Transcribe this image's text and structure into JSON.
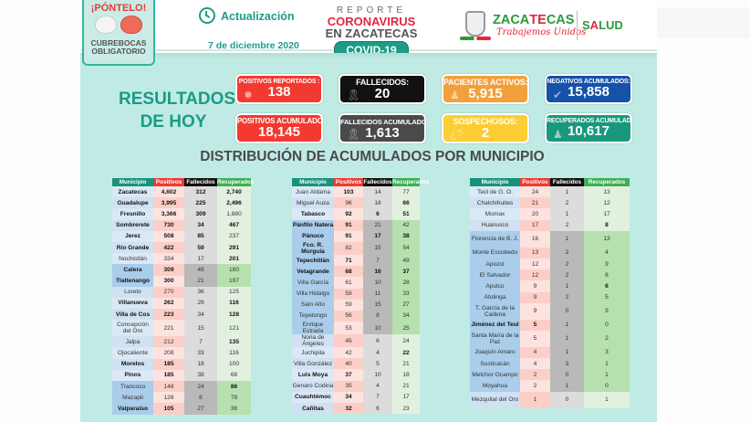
{
  "background": {
    "left_fragments": [
      "",
      "",
      "",
      "",
      "",
      "",
      "",
      ""
    ],
    "right_banner": ""
  },
  "header": {
    "ponte": {
      "title": "¡PÓNTELO!",
      "subtitle_line1": "CUBREBOCAS",
      "subtitle_line2": "OBLIGATORIO"
    },
    "update": {
      "icon": "clock-icon",
      "label": "Actualización",
      "date": "7 de diciembre 2020"
    },
    "report": {
      "line1": "REPORTE",
      "line2": "CORONAVIRUS",
      "line3": "EN ZACATECAS",
      "badge": "COVID-19"
    },
    "government": {
      "name_green": "ZACA",
      "name_red": "TE",
      "name_green2": "CAS",
      "slogan": "Trabajemos Unidos",
      "health_green": "S",
      "health_red": "A",
      "health_green2": "LUD"
    }
  },
  "results": {
    "title_line1": "RESULTADOS",
    "title_line2": "DE HOY",
    "cards": [
      {
        "label": "POSITIVOS REPORTADOS :",
        "value": "138",
        "color": "#f33a30",
        "icon": "virus-icon"
      },
      {
        "label": "FALLECIDOS:",
        "value": "20",
        "color": "#111111",
        "icon": "ribbon-icon"
      },
      {
        "label": "PACIENTES ACTIVOS:",
        "value": "5,915",
        "color": "#f2a03b",
        "icon": "person-icon"
      },
      {
        "label": "NEGATIVOS ACUMULADOS:",
        "value": "15,858",
        "color": "#1552a8",
        "icon": "check-icon"
      },
      {
        "label": "POSITIVOS ACUMULADOS:",
        "value": "18,145",
        "color": "#f33a30",
        "icon": ""
      },
      {
        "label": "FALLECIDOS ACUMULADOS:",
        "value": "1,613",
        "color": "#4a4a4a",
        "icon": "ribbon-icon"
      },
      {
        "label": "SOSPECHOSOS:",
        "value": "2",
        "color": "#fccd35",
        "icon": "question-icon"
      },
      {
        "label": "RECUPERADOS ACUMULADOS:",
        "value": "10,617",
        "color": "#19987e",
        "icon": "person-icon"
      }
    ]
  },
  "distribution": {
    "title": "DISTRIBUCIÓN DE ACUMULADOS POR MUNICIPIO",
    "headers": [
      "Municipio",
      "Positivos",
      "Fallecidos",
      "Recuperados"
    ],
    "tables": [
      [
        [
          "Zacatecas",
          "4,602",
          "312",
          "2,740"
        ],
        [
          "Guadalupe",
          "3,995",
          "225",
          "2,496"
        ],
        [
          "Fresnillo",
          "3,366",
          "309",
          "1,880"
        ],
        [
          "Sombrerete",
          "730",
          "34",
          "467"
        ],
        [
          "Jerez",
          "508",
          "85",
          "237"
        ],
        [
          "Río Grande",
          "422",
          "59",
          "291"
        ],
        [
          "Nochistlán",
          "334",
          "17",
          "201"
        ],
        [
          "Calera",
          "309",
          "49",
          "180"
        ],
        [
          "Tlaltenango",
          "300",
          "21",
          "197"
        ],
        [
          "Loreto",
          "270",
          "36",
          "125"
        ],
        [
          "Villanueva",
          "262",
          "29",
          "116"
        ],
        [
          "Villa de Cos",
          "223",
          "34",
          "128"
        ],
        [
          "Concepción del Oro",
          "221",
          "15",
          "121"
        ],
        [
          "Jalpa",
          "212",
          "7",
          "135"
        ],
        [
          "Ojocaliente",
          "208",
          "33",
          "116"
        ],
        [
          "Morelos",
          "185",
          "18",
          "100"
        ],
        [
          "Pinos",
          "185",
          "38",
          "68"
        ],
        [
          "Trancoso",
          "148",
          "24",
          "86"
        ],
        [
          "Mazapil",
          "128",
          "8",
          "78"
        ],
        [
          "Valparaíso",
          "105",
          "27",
          "36"
        ]
      ],
      [
        [
          "Juan Aldama",
          "103",
          "14",
          "77"
        ],
        [
          "Miguel Auza",
          "96",
          "18",
          "66"
        ],
        [
          "Tabasco",
          "92",
          "6",
          "51"
        ],
        [
          "Pánfilo Natera",
          "91",
          "21",
          "42"
        ],
        [
          "Pánuco",
          "91",
          "17",
          "38"
        ],
        [
          "Fco. R. Murguía",
          "82",
          "15",
          "54"
        ],
        [
          "Tepechitlán",
          "71",
          "7",
          "49"
        ],
        [
          "Vetagrande",
          "68",
          "16",
          "37"
        ],
        [
          "Villa García",
          "61",
          "10",
          "28"
        ],
        [
          "Villa Hidalgo",
          "59",
          "11",
          "33"
        ],
        [
          "Sain Alto",
          "59",
          "15",
          "27"
        ],
        [
          "Tepetongo",
          "56",
          "8",
          "34"
        ],
        [
          "Enrique Estrada",
          "53",
          "10",
          "25"
        ],
        [
          "Noria de Ángeles",
          "45",
          "6",
          "24"
        ],
        [
          "Juchipila",
          "42",
          "4",
          "22"
        ],
        [
          "Villa González",
          "40",
          "5",
          "21"
        ],
        [
          "Luis Moya",
          "37",
          "10",
          "18"
        ],
        [
          "Genaro Codina",
          "35",
          "4",
          "21"
        ],
        [
          "Cuauhtémoc",
          "34",
          "7",
          "17"
        ],
        [
          "Cañitas",
          "32",
          "6",
          "23"
        ]
      ],
      [
        [
          "Teúl de G. O.",
          "24",
          "1",
          "13"
        ],
        [
          "Chalchihuites",
          "21",
          "2",
          "12"
        ],
        [
          "Momax",
          "20",
          "1",
          "17"
        ],
        [
          "Huanusco",
          "17",
          "2",
          "8"
        ],
        [
          "Florencia de B. J.",
          "16",
          "1",
          "13"
        ],
        [
          "Monte Escobedo",
          "13",
          "2",
          "4"
        ],
        [
          "Apozol",
          "12",
          "2",
          "9"
        ],
        [
          "El Salvador",
          "12",
          "2",
          "8"
        ],
        [
          "Apulco",
          "9",
          "1",
          "6"
        ],
        [
          "Atolinga",
          "9",
          "2",
          "5"
        ],
        [
          "T. García de la Cadena",
          "9",
          "0",
          "9"
        ],
        [
          "Jiménez del Teul",
          "5",
          "1",
          "0"
        ],
        [
          "Santa María de la Paz",
          "5",
          "1",
          "2"
        ],
        [
          "Joaquín Amaro",
          "4",
          "1",
          "3"
        ],
        [
          "Susticacán",
          "4",
          "3",
          "1"
        ],
        [
          "Melchor Ocampo",
          "2",
          "0",
          "1"
        ],
        [
          "Moyahua",
          "2",
          "1",
          "0"
        ],
        [
          "Mezquital del Oro",
          "1",
          "0",
          "1"
        ]
      ]
    ]
  }
}
